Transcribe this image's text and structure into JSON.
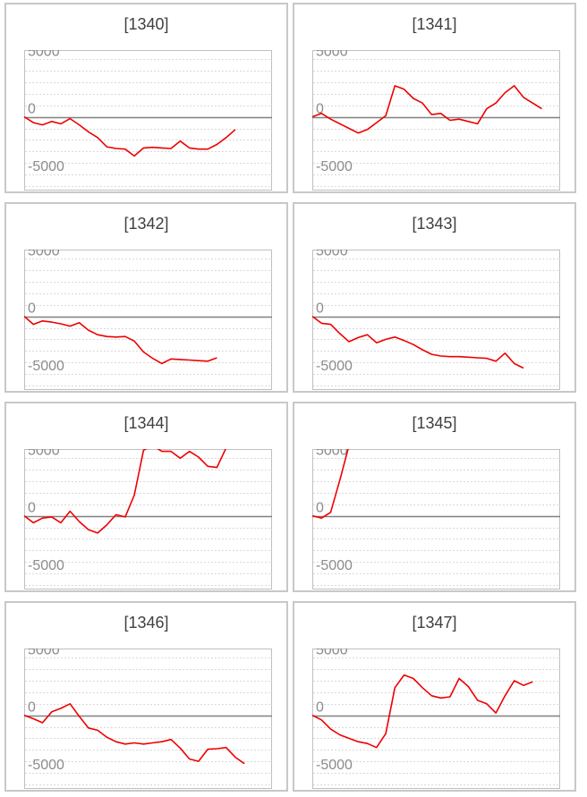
{
  "colors": {
    "series": "#ee0000",
    "zero_line": "#808080",
    "grid": "#d9d9d9",
    "frame": "#c0c0c0",
    "panel_border": "#c8c8c8"
  },
  "chart_data": [
    {
      "type": "line",
      "title": "[1340]",
      "yticks": [
        "5000",
        "0",
        "-5000"
      ],
      "ylim": [
        -6400,
        5800
      ],
      "values": [
        0,
        -500,
        -700,
        -400,
        -600,
        -150,
        -700,
        -1300,
        -1800,
        -2600,
        -2750,
        -2800,
        -3400,
        -2700,
        -2650,
        -2700,
        -2750,
        -2100,
        -2700,
        -2800,
        -2800,
        -2400,
        -1800,
        -1100
      ]
    },
    {
      "type": "line",
      "title": "[1341]",
      "yticks": [
        "5000",
        "0",
        "-5000"
      ],
      "ylim": [
        -6400,
        5800
      ],
      "values": [
        0,
        300,
        -200,
        -600,
        -1000,
        -1400,
        -1100,
        -500,
        100,
        2700,
        2400,
        1600,
        1200,
        200,
        300,
        -300,
        -200,
        -400,
        -600,
        700,
        1200,
        2100,
        2700,
        1700,
        1200,
        700
      ]
    },
    {
      "type": "line",
      "title": "[1342]",
      "yticks": [
        "5000",
        "0",
        "-5000"
      ],
      "ylim": [
        -6400,
        5800
      ],
      "values": [
        0,
        -700,
        -400,
        -500,
        -650,
        -850,
        -550,
        -1200,
        -1600,
        -1750,
        -1800,
        -1750,
        -2150,
        -3100,
        -3650,
        -4100,
        -3700,
        -3750,
        -3800,
        -3850,
        -3900,
        -3600
      ]
    },
    {
      "type": "line",
      "title": "[1343]",
      "yticks": [
        "5000",
        "0",
        "-5000"
      ],
      "ylim": [
        -6400,
        5800
      ],
      "values": [
        0,
        -600,
        -700,
        -1500,
        -2200,
        -1850,
        -1600,
        -2300,
        -2000,
        -1800,
        -2100,
        -2450,
        -2900,
        -3300,
        -3450,
        -3500,
        -3500,
        -3550,
        -3600,
        -3650,
        -3900,
        -3200,
        -4100,
        -4500
      ]
    },
    {
      "type": "line",
      "title": "[1344]",
      "yticks": [
        "5000",
        "0",
        "-5000"
      ],
      "ylim": [
        -6400,
        5800
      ],
      "values": [
        0,
        -600,
        -200,
        -100,
        -600,
        400,
        -500,
        -1200,
        -1500,
        -800,
        100,
        -100,
        1800,
        5700,
        6100,
        5600,
        5600,
        5000,
        5600,
        5100,
        4300,
        4200,
        5900,
        6000,
        6000
      ]
    },
    {
      "type": "line",
      "title": "[1345]",
      "yticks": [
        "5000",
        "0",
        "-5000"
      ],
      "ylim": [
        -6400,
        5800
      ],
      "values": [
        0,
        -200,
        300,
        3100,
        6100,
        6100,
        6100,
        6100,
        6100,
        6100,
        6100,
        6100,
        6100,
        6100,
        6100,
        6100,
        6100,
        6100,
        6100,
        6100,
        6100,
        6100,
        6100
      ]
    },
    {
      "type": "line",
      "title": "[1346]",
      "yticks": [
        "5000",
        "0",
        "-5000"
      ],
      "ylim": [
        -6400,
        5800
      ],
      "values": [
        0,
        -300,
        -650,
        300,
        600,
        1000,
        -100,
        -1100,
        -1300,
        -1900,
        -2300,
        -2500,
        -2400,
        -2500,
        -2400,
        -2300,
        -2100,
        -2850,
        -3800,
        -4000,
        -2950,
        -2900,
        -2800,
        -3650,
        -4200
      ]
    },
    {
      "type": "line",
      "title": "[1347]",
      "yticks": [
        "5000",
        "0",
        "-5000"
      ],
      "ylim": [
        -6400,
        5800
      ],
      "values": [
        0,
        -400,
        -1200,
        -1700,
        -2000,
        -2300,
        -2450,
        -2800,
        -1600,
        2400,
        3500,
        3200,
        2400,
        1700,
        1500,
        1600,
        3200,
        2500,
        1300,
        1000,
        200,
        1700,
        3000,
        2600,
        2900
      ]
    }
  ]
}
